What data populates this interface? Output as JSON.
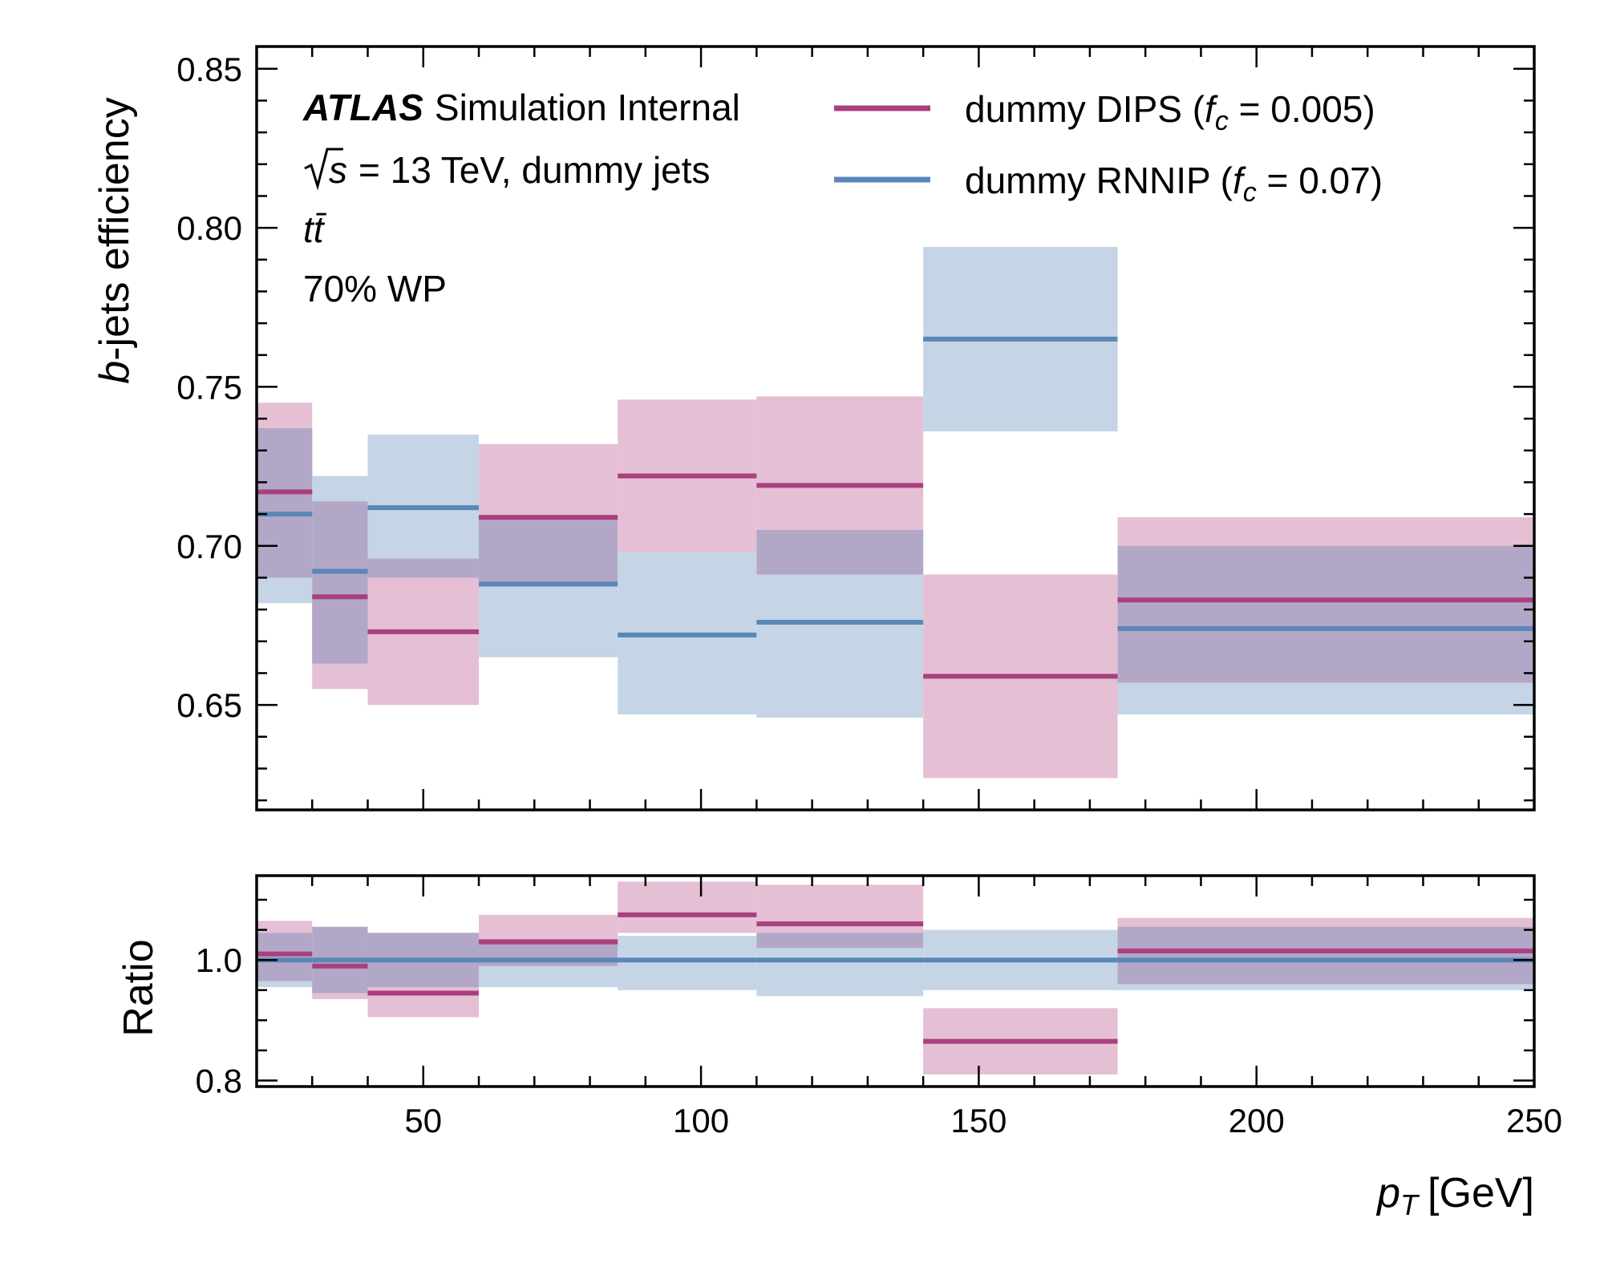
{
  "chart_data": {
    "type": "line",
    "annotations": {
      "experiment": "ATLAS",
      "experiment_suffix": "Simulation Internal",
      "sqrt_s": "s",
      "energy_text": "= 13 TeV, dummy jets",
      "process": "tt̄",
      "working_point": "70% WP"
    },
    "xlabel_symbol": "p",
    "xlabel_subscript": "T",
    "xlabel_unit": "[GeV]",
    "xlim": [
      20,
      250
    ],
    "x_ticks": [
      50,
      100,
      150,
      200,
      250
    ],
    "x_tick_labels": [
      "50",
      "100",
      "150",
      "200",
      "250"
    ],
    "bin_edges": [
      20,
      30,
      40,
      60,
      85,
      110,
      140,
      175,
      250
    ],
    "legend": [
      {
        "prefix": "dummy DIPS (",
        "fsym": "f",
        "fsub": "c",
        "fval": " = 0.005)"
      },
      {
        "prefix": "dummy RNNIP (",
        "fsym": "f",
        "fsub": "c",
        "fval": " = 0.07)"
      }
    ],
    "legend_position": "upper right",
    "colors": {
      "dips": "#aa3f7e",
      "rnnip": "#5a87b8",
      "dips_band": "#e5bfd4",
      "rnnip_band": "#c5d5e6",
      "overlap_band": "#b3a7c7"
    },
    "top_panel": {
      "ylabel_symbol": "b",
      "ylabel_rest": "-jets efficiency",
      "ylim": [
        0.617,
        0.857
      ],
      "y_ticks": [
        0.65,
        0.7,
        0.75,
        0.8,
        0.85
      ],
      "y_tick_labels": [
        "0.65",
        "0.70",
        "0.75",
        "0.80",
        "0.85"
      ],
      "series": [
        {
          "name": "dummy DIPS (f_c = 0.005)",
          "values": [
            0.717,
            0.684,
            0.673,
            0.709,
            0.722,
            0.719,
            0.659,
            0.683
          ],
          "low": [
            0.69,
            0.655,
            0.65,
            0.688,
            0.698,
            0.691,
            0.627,
            0.657
          ],
          "high": [
            0.745,
            0.714,
            0.696,
            0.732,
            0.746,
            0.747,
            0.691,
            0.709
          ]
        },
        {
          "name": "dummy RNNIP (f_c = 0.07)",
          "values": [
            0.71,
            0.692,
            0.712,
            0.688,
            0.672,
            0.676,
            0.765,
            0.674
          ],
          "low": [
            0.682,
            0.663,
            0.69,
            0.665,
            0.647,
            0.646,
            0.736,
            0.647
          ],
          "high": [
            0.737,
            0.722,
            0.735,
            0.709,
            0.698,
            0.705,
            0.794,
            0.7
          ]
        }
      ]
    },
    "ratio_panel": {
      "ylabel": "Ratio",
      "ylim": [
        0.79,
        1.14
      ],
      "y_ticks": [
        0.8,
        1.0
      ],
      "y_tick_labels": [
        "0.8",
        "1.0"
      ],
      "series": [
        {
          "name": "dummy DIPS (f_c = 0.005)",
          "values": [
            1.01,
            0.99,
            0.945,
            1.03,
            1.075,
            1.06,
            0.865,
            1.015
          ],
          "low": [
            0.965,
            0.935,
            0.905,
            0.99,
            1.045,
            1.02,
            0.81,
            0.96
          ],
          "high": [
            1.065,
            1.055,
            1.045,
            1.075,
            1.13,
            1.125,
            0.92,
            1.07
          ]
        },
        {
          "name": "dummy RNNIP (f_c = 0.07)",
          "values": [
            1.0,
            1.0,
            1.0,
            1.0,
            1.0,
            1.0,
            1.0,
            1.0
          ],
          "low": [
            0.955,
            0.945,
            0.955,
            0.955,
            0.95,
            0.94,
            0.95,
            0.95
          ],
          "high": [
            1.045,
            1.055,
            1.045,
            1.035,
            1.04,
            1.045,
            1.05,
            1.055
          ]
        }
      ]
    }
  }
}
